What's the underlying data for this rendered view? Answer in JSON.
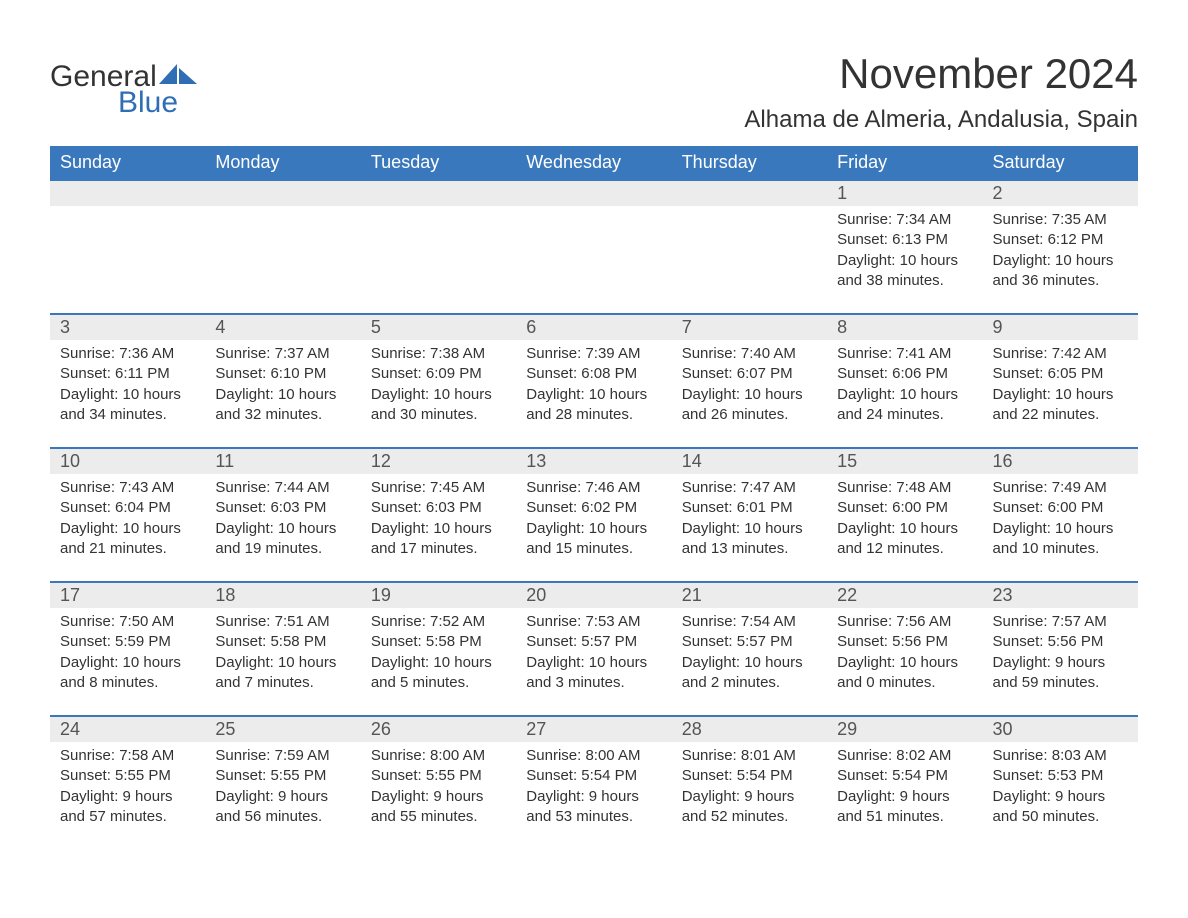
{
  "logo": {
    "text1": "General",
    "text2": "Blue"
  },
  "title": "November 2024",
  "location": "Alhama de Almeria, Andalusia, Spain",
  "colors": {
    "header_bg": "#3a78bd",
    "header_text": "#ffffff",
    "daynum_bg": "#ececec",
    "brand_blue": "#2f6eb5",
    "text": "#333333",
    "row_border": "#3a78bd"
  },
  "fonts": {
    "title_size_pt": 42,
    "location_size_pt": 24,
    "header_size_pt": 18,
    "body_size_pt": 15
  },
  "day_headers": [
    "Sunday",
    "Monday",
    "Tuesday",
    "Wednesday",
    "Thursday",
    "Friday",
    "Saturday"
  ],
  "weeks": [
    [
      {
        "day": "",
        "sunrise": "",
        "sunset": "",
        "daylight1": "",
        "daylight2": ""
      },
      {
        "day": "",
        "sunrise": "",
        "sunset": "",
        "daylight1": "",
        "daylight2": ""
      },
      {
        "day": "",
        "sunrise": "",
        "sunset": "",
        "daylight1": "",
        "daylight2": ""
      },
      {
        "day": "",
        "sunrise": "",
        "sunset": "",
        "daylight1": "",
        "daylight2": ""
      },
      {
        "day": "",
        "sunrise": "",
        "sunset": "",
        "daylight1": "",
        "daylight2": ""
      },
      {
        "day": "1",
        "sunrise": "Sunrise: 7:34 AM",
        "sunset": "Sunset: 6:13 PM",
        "daylight1": "Daylight: 10 hours",
        "daylight2": "and 38 minutes."
      },
      {
        "day": "2",
        "sunrise": "Sunrise: 7:35 AM",
        "sunset": "Sunset: 6:12 PM",
        "daylight1": "Daylight: 10 hours",
        "daylight2": "and 36 minutes."
      }
    ],
    [
      {
        "day": "3",
        "sunrise": "Sunrise: 7:36 AM",
        "sunset": "Sunset: 6:11 PM",
        "daylight1": "Daylight: 10 hours",
        "daylight2": "and 34 minutes."
      },
      {
        "day": "4",
        "sunrise": "Sunrise: 7:37 AM",
        "sunset": "Sunset: 6:10 PM",
        "daylight1": "Daylight: 10 hours",
        "daylight2": "and 32 minutes."
      },
      {
        "day": "5",
        "sunrise": "Sunrise: 7:38 AM",
        "sunset": "Sunset: 6:09 PM",
        "daylight1": "Daylight: 10 hours",
        "daylight2": "and 30 minutes."
      },
      {
        "day": "6",
        "sunrise": "Sunrise: 7:39 AM",
        "sunset": "Sunset: 6:08 PM",
        "daylight1": "Daylight: 10 hours",
        "daylight2": "and 28 minutes."
      },
      {
        "day": "7",
        "sunrise": "Sunrise: 7:40 AM",
        "sunset": "Sunset: 6:07 PM",
        "daylight1": "Daylight: 10 hours",
        "daylight2": "and 26 minutes."
      },
      {
        "day": "8",
        "sunrise": "Sunrise: 7:41 AM",
        "sunset": "Sunset: 6:06 PM",
        "daylight1": "Daylight: 10 hours",
        "daylight2": "and 24 minutes."
      },
      {
        "day": "9",
        "sunrise": "Sunrise: 7:42 AM",
        "sunset": "Sunset: 6:05 PM",
        "daylight1": "Daylight: 10 hours",
        "daylight2": "and 22 minutes."
      }
    ],
    [
      {
        "day": "10",
        "sunrise": "Sunrise: 7:43 AM",
        "sunset": "Sunset: 6:04 PM",
        "daylight1": "Daylight: 10 hours",
        "daylight2": "and 21 minutes."
      },
      {
        "day": "11",
        "sunrise": "Sunrise: 7:44 AM",
        "sunset": "Sunset: 6:03 PM",
        "daylight1": "Daylight: 10 hours",
        "daylight2": "and 19 minutes."
      },
      {
        "day": "12",
        "sunrise": "Sunrise: 7:45 AM",
        "sunset": "Sunset: 6:03 PM",
        "daylight1": "Daylight: 10 hours",
        "daylight2": "and 17 minutes."
      },
      {
        "day": "13",
        "sunrise": "Sunrise: 7:46 AM",
        "sunset": "Sunset: 6:02 PM",
        "daylight1": "Daylight: 10 hours",
        "daylight2": "and 15 minutes."
      },
      {
        "day": "14",
        "sunrise": "Sunrise: 7:47 AM",
        "sunset": "Sunset: 6:01 PM",
        "daylight1": "Daylight: 10 hours",
        "daylight2": "and 13 minutes."
      },
      {
        "day": "15",
        "sunrise": "Sunrise: 7:48 AM",
        "sunset": "Sunset: 6:00 PM",
        "daylight1": "Daylight: 10 hours",
        "daylight2": "and 12 minutes."
      },
      {
        "day": "16",
        "sunrise": "Sunrise: 7:49 AM",
        "sunset": "Sunset: 6:00 PM",
        "daylight1": "Daylight: 10 hours",
        "daylight2": "and 10 minutes."
      }
    ],
    [
      {
        "day": "17",
        "sunrise": "Sunrise: 7:50 AM",
        "sunset": "Sunset: 5:59 PM",
        "daylight1": "Daylight: 10 hours",
        "daylight2": "and 8 minutes."
      },
      {
        "day": "18",
        "sunrise": "Sunrise: 7:51 AM",
        "sunset": "Sunset: 5:58 PM",
        "daylight1": "Daylight: 10 hours",
        "daylight2": "and 7 minutes."
      },
      {
        "day": "19",
        "sunrise": "Sunrise: 7:52 AM",
        "sunset": "Sunset: 5:58 PM",
        "daylight1": "Daylight: 10 hours",
        "daylight2": "and 5 minutes."
      },
      {
        "day": "20",
        "sunrise": "Sunrise: 7:53 AM",
        "sunset": "Sunset: 5:57 PM",
        "daylight1": "Daylight: 10 hours",
        "daylight2": "and 3 minutes."
      },
      {
        "day": "21",
        "sunrise": "Sunrise: 7:54 AM",
        "sunset": "Sunset: 5:57 PM",
        "daylight1": "Daylight: 10 hours",
        "daylight2": "and 2 minutes."
      },
      {
        "day": "22",
        "sunrise": "Sunrise: 7:56 AM",
        "sunset": "Sunset: 5:56 PM",
        "daylight1": "Daylight: 10 hours",
        "daylight2": "and 0 minutes."
      },
      {
        "day": "23",
        "sunrise": "Sunrise: 7:57 AM",
        "sunset": "Sunset: 5:56 PM",
        "daylight1": "Daylight: 9 hours",
        "daylight2": "and 59 minutes."
      }
    ],
    [
      {
        "day": "24",
        "sunrise": "Sunrise: 7:58 AM",
        "sunset": "Sunset: 5:55 PM",
        "daylight1": "Daylight: 9 hours",
        "daylight2": "and 57 minutes."
      },
      {
        "day": "25",
        "sunrise": "Sunrise: 7:59 AM",
        "sunset": "Sunset: 5:55 PM",
        "daylight1": "Daylight: 9 hours",
        "daylight2": "and 56 minutes."
      },
      {
        "day": "26",
        "sunrise": "Sunrise: 8:00 AM",
        "sunset": "Sunset: 5:55 PM",
        "daylight1": "Daylight: 9 hours",
        "daylight2": "and 55 minutes."
      },
      {
        "day": "27",
        "sunrise": "Sunrise: 8:00 AM",
        "sunset": "Sunset: 5:54 PM",
        "daylight1": "Daylight: 9 hours",
        "daylight2": "and 53 minutes."
      },
      {
        "day": "28",
        "sunrise": "Sunrise: 8:01 AM",
        "sunset": "Sunset: 5:54 PM",
        "daylight1": "Daylight: 9 hours",
        "daylight2": "and 52 minutes."
      },
      {
        "day": "29",
        "sunrise": "Sunrise: 8:02 AM",
        "sunset": "Sunset: 5:54 PM",
        "daylight1": "Daylight: 9 hours",
        "daylight2": "and 51 minutes."
      },
      {
        "day": "30",
        "sunrise": "Sunrise: 8:03 AM",
        "sunset": "Sunset: 5:53 PM",
        "daylight1": "Daylight: 9 hours",
        "daylight2": "and 50 minutes."
      }
    ]
  ]
}
